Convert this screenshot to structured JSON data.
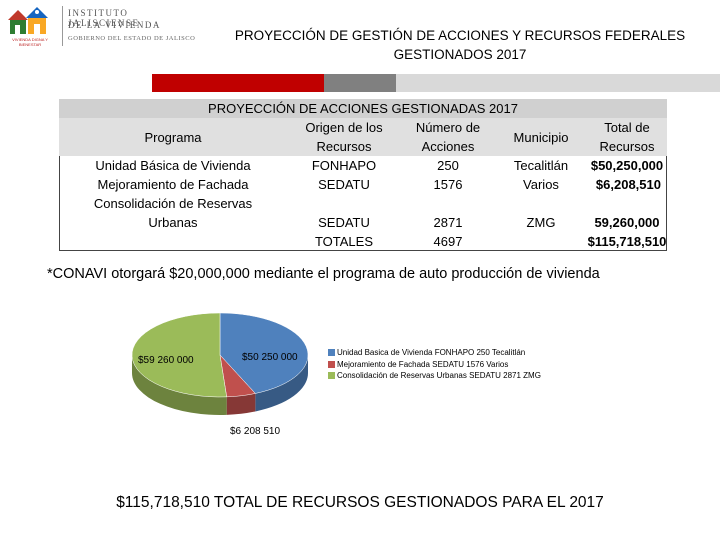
{
  "logo": {
    "institute_line1": "INSTITUTO JALISCIENSE",
    "institute_line2": "DE LA VIVIENDA",
    "government": "GOBIERNO DEL ESTADO DE JALISCO",
    "emblem_caption": "VIVIENDA DIGNA Y BIENESTAR"
  },
  "header": {
    "title_line1": "PROYECCIÓN DE GESTIÓN DE ACCIONES Y RECURSOS FEDERALES",
    "title_line2": "GESTIONADOS 2017"
  },
  "colors": {
    "strip_red": "#c00000",
    "strip_gray": "#808080",
    "strip_light": "#d9d9d9",
    "pie_blue": "#4f81bd",
    "pie_red": "#c0504d",
    "pie_green": "#9bbb59"
  },
  "table": {
    "title": "PROYECCIÓN DE ACCIONES GESTIONADAS 2017",
    "headers": {
      "programa": "Programa",
      "origen_1": "Origen de los",
      "origen_2": "Recursos",
      "numero_1": "Número de",
      "numero_2": "Acciones",
      "municipio": "Municipio",
      "total_1": "Total de",
      "total_2": "Recursos"
    },
    "rows": [
      {
        "programa": "Unidad Básica de Vivienda",
        "origen": "FONHAPO",
        "acciones": "250",
        "municipio": "Tecalitlán",
        "total": "$50,250,000"
      },
      {
        "programa": "Mejoramiento de Fachada",
        "origen": "SEDATU",
        "acciones": "1576",
        "municipio": "Varios",
        "total": "$6,208,510"
      },
      {
        "programa_1": "Consolidación de Reservas",
        "programa_2": "Urbanas",
        "origen": "SEDATU",
        "acciones": "2871",
        "municipio": "ZMG",
        "total": "59,260,000"
      }
    ],
    "totals": {
      "label": "TOTALES",
      "acciones": "4697",
      "total": "$115,718,510"
    }
  },
  "note": {
    "text": "*CONAVI otorgará $20,000,000 mediante el programa de auto producción de vivienda"
  },
  "chart_data": {
    "type": "pie",
    "title": "",
    "slices": [
      {
        "label": "Unidad Basica de Vivienda FONHAPO 250 Tecalitlán",
        "value": 50250000,
        "data_label": "$50 250 000",
        "color": "#4f81bd"
      },
      {
        "label": "Mejoramiento de Fachada SEDATU 1576 Varios",
        "value": 6208510,
        "data_label": "$6 208 510",
        "color": "#c0504d"
      },
      {
        "label": "Consolidación de Reservas Urbanas SEDATU 2871 ZMG",
        "value": 59260000,
        "data_label": "$59 260 000",
        "color": "#9bbb59"
      }
    ],
    "legend_placement": "right"
  },
  "footer": {
    "total_text": "$115,718,510 TOTAL DE RECURSOS GESTIONADOS PARA EL 2017"
  }
}
